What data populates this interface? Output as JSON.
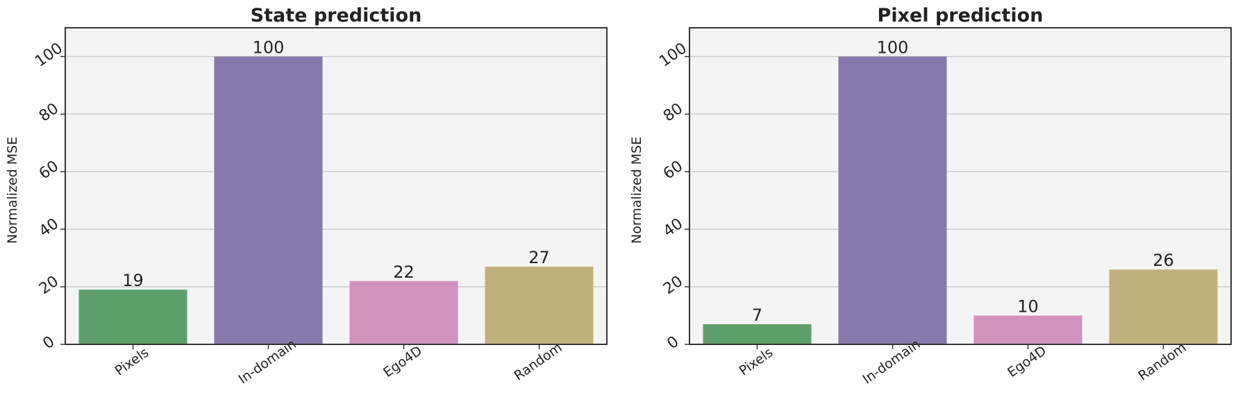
{
  "chart_data": [
    {
      "type": "bar",
      "title": "State prediction",
      "ylabel": "Normalized MSE",
      "xlabel": "",
      "ylim": [
        0,
        110
      ],
      "yticks": [
        0,
        20,
        40,
        60,
        80,
        100
      ],
      "categories": [
        "Pixels",
        "In-domain",
        "Ego4D",
        "Random"
      ],
      "values": [
        19,
        100,
        22,
        27
      ],
      "data_labels": [
        "19",
        "100",
        "22",
        "27"
      ],
      "colors": [
        "#5ea06c",
        "#8679ac",
        "#d093bd",
        "#c2b07c"
      ],
      "grid": "horizontal",
      "background": "#f4f4f4"
    },
    {
      "type": "bar",
      "title": "Pixel prediction",
      "ylabel": "Normalized MSE",
      "xlabel": "",
      "ylim": [
        0,
        110
      ],
      "yticks": [
        0,
        20,
        40,
        60,
        80,
        100
      ],
      "categories": [
        "Pixels",
        "In-domain",
        "Ego4D",
        "Random"
      ],
      "values": [
        7,
        100,
        10,
        26
      ],
      "data_labels": [
        "7",
        "100",
        "10",
        "26"
      ],
      "colors": [
        "#5ea06c",
        "#8679ac",
        "#d093bd",
        "#c2b07c"
      ],
      "grid": "horizontal",
      "background": "#f4f4f4"
    }
  ]
}
